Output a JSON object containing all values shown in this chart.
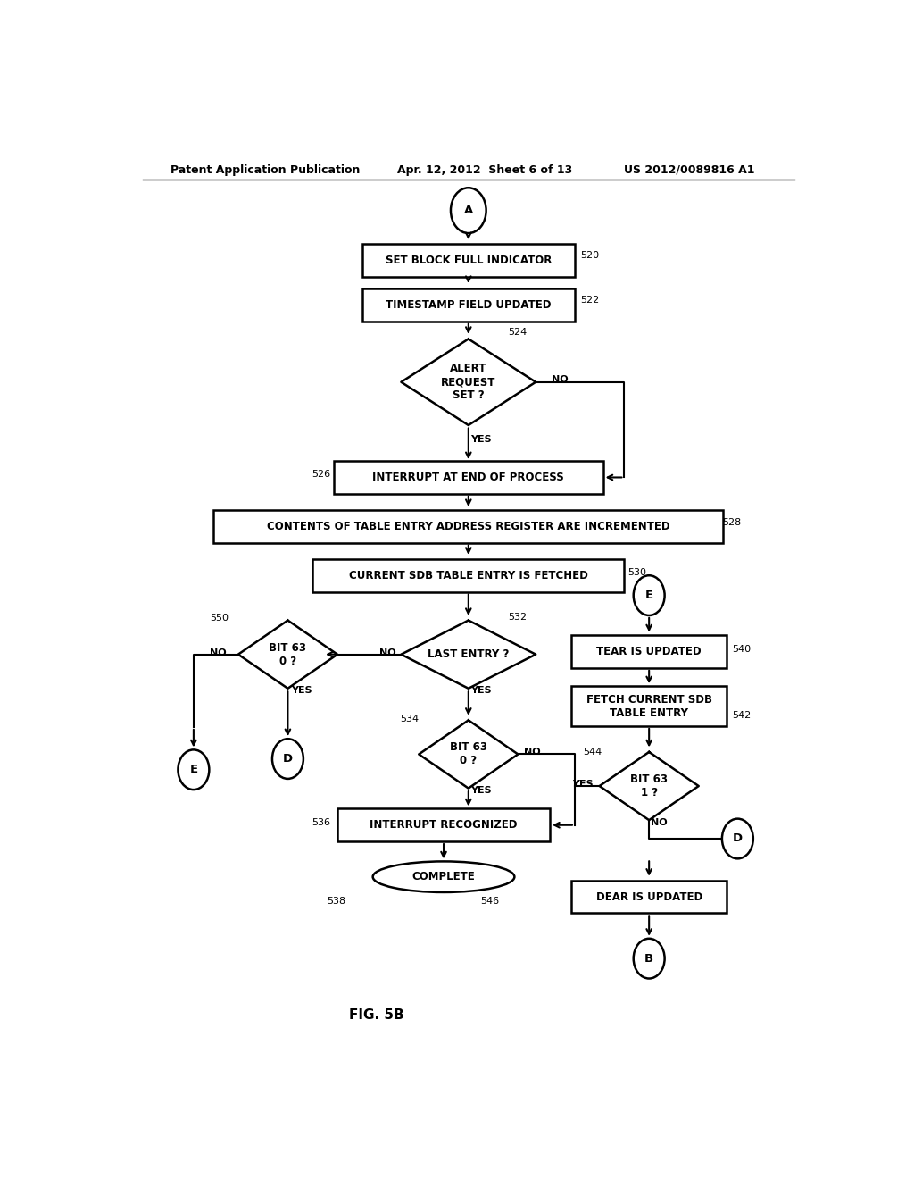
{
  "title_left": "Patent Application Publication",
  "title_mid": "Apr. 12, 2012  Sheet 6 of 13",
  "title_right": "US 2012/0089816 A1",
  "fig_label": "FIG. 5B",
  "bg_color": "#ffffff",
  "text_color": "#000000"
}
